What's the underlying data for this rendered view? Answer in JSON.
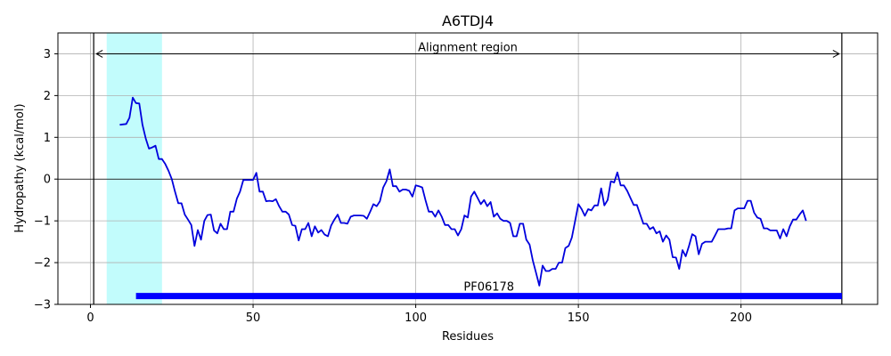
{
  "chart_data": {
    "type": "line",
    "title": "A6TDJ4",
    "xlabel": "Residues",
    "ylabel": "Hydropathy (kcal/mol)",
    "xlim": [
      -10,
      242
    ],
    "ylim": [
      -3,
      3.5
    ],
    "xticks": [
      0,
      50,
      100,
      150,
      200
    ],
    "yticks": [
      -3,
      -2,
      -1,
      0,
      1,
      2,
      3
    ],
    "grid": true,
    "colors": {
      "line": "#0000dd",
      "highlight": "#c2fcfc",
      "domain_bar": "#0000ff",
      "grid": "#b0b0b0"
    },
    "highlight_region": [
      5,
      22
    ],
    "alignment_region": {
      "label": "Alignment region",
      "start": 1,
      "end": 231,
      "y": 3
    },
    "domain": {
      "label": "PF06178",
      "start": 14,
      "end": 231,
      "y": -2.8
    },
    "series": [
      {
        "x": [
          9,
          11,
          12,
          13,
          14,
          15,
          16,
          17,
          18,
          19,
          20,
          21,
          22,
          23,
          24,
          25,
          26,
          27,
          28,
          29,
          30,
          31,
          32,
          33,
          34,
          35,
          36,
          37,
          38,
          39,
          40,
          41,
          42,
          43,
          44,
          45,
          46,
          47,
          48,
          49,
          50,
          51,
          52,
          53,
          54,
          55,
          56,
          57,
          58,
          59,
          60,
          61,
          62,
          63,
          64,
          65,
          66,
          67,
          68,
          69,
          70,
          71,
          72,
          73,
          74,
          75,
          76,
          77,
          78,
          79,
          80,
          81,
          82,
          83,
          84,
          85,
          86,
          87,
          88,
          89,
          90,
          91,
          92,
          93,
          94,
          95,
          96,
          97,
          98,
          99,
          100,
          101,
          102,
          103,
          104,
          105,
          106,
          107,
          108,
          109,
          110,
          111,
          112,
          113,
          114,
          115,
          116,
          117,
          118,
          119,
          120,
          121,
          122,
          123,
          124,
          125,
          126,
          127,
          128,
          129,
          130,
          131,
          132,
          133,
          134,
          135,
          136,
          137,
          138,
          139,
          140,
          141,
          142,
          143,
          144,
          145,
          146,
          147,
          148,
          149,
          150,
          151,
          152,
          153,
          154,
          155,
          156,
          157,
          158,
          159,
          160,
          161,
          162,
          163,
          164,
          165,
          166,
          167,
          168,
          169,
          170,
          171,
          172,
          173,
          174,
          175,
          176,
          177,
          178,
          179,
          180,
          181,
          182,
          183,
          184,
          185,
          186,
          187,
          188,
          189,
          190,
          191,
          192,
          193,
          194,
          195,
          196,
          197,
          198,
          199,
          200,
          201,
          202,
          203,
          204,
          205,
          206,
          207,
          208,
          209,
          210,
          211,
          212,
          213,
          214,
          215,
          216,
          217,
          218,
          219,
          220
        ],
        "values": [
          1.3,
          1.32,
          1.47,
          1.95,
          1.82,
          1.81,
          1.3,
          0.97,
          0.73,
          0.76,
          0.8,
          0.48,
          0.48,
          0.36,
          0.2,
          0.0,
          -0.3,
          -0.58,
          -0.58,
          -0.85,
          -0.97,
          -1.1,
          -1.6,
          -1.22,
          -1.45,
          -1.0,
          -0.86,
          -0.85,
          -1.23,
          -1.3,
          -1.07,
          -1.2,
          -1.2,
          -0.78,
          -0.78,
          -0.47,
          -0.3,
          -0.02,
          -0.02,
          -0.02,
          -0.02,
          0.15,
          -0.3,
          -0.3,
          -0.53,
          -0.52,
          -0.53,
          -0.48,
          -0.65,
          -0.78,
          -0.78,
          -0.85,
          -1.1,
          -1.12,
          -1.47,
          -1.2,
          -1.2,
          -1.05,
          -1.37,
          -1.13,
          -1.28,
          -1.22,
          -1.33,
          -1.37,
          -1.11,
          -0.97,
          -0.85,
          -1.05,
          -1.05,
          -1.07,
          -0.9,
          -0.87,
          -0.87,
          -0.87,
          -0.88,
          -0.95,
          -0.78,
          -0.6,
          -0.65,
          -0.53,
          -0.2,
          -0.05,
          0.23,
          -0.17,
          -0.17,
          -0.3,
          -0.25,
          -0.25,
          -0.28,
          -0.42,
          -0.15,
          -0.17,
          -0.2,
          -0.5,
          -0.78,
          -0.78,
          -0.9,
          -0.75,
          -0.9,
          -1.1,
          -1.1,
          -1.2,
          -1.2,
          -1.35,
          -1.2,
          -0.87,
          -0.92,
          -0.42,
          -0.3,
          -0.45,
          -0.6,
          -0.5,
          -0.65,
          -0.55,
          -0.9,
          -0.82,
          -0.95,
          -1.0,
          -1.0,
          -1.05,
          -1.37,
          -1.37,
          -1.07,
          -1.07,
          -1.45,
          -1.57,
          -1.95,
          -2.25,
          -2.55,
          -2.07,
          -2.2,
          -2.2,
          -2.15,
          -2.15,
          -2.0,
          -2.0,
          -1.65,
          -1.6,
          -1.4,
          -1.0,
          -0.6,
          -0.72,
          -0.88,
          -0.72,
          -0.75,
          -0.63,
          -0.63,
          -0.22,
          -0.63,
          -0.5,
          -0.05,
          -0.08,
          0.16,
          -0.15,
          -0.15,
          -0.28,
          -0.45,
          -0.62,
          -0.62,
          -0.85,
          -1.07,
          -1.07,
          -1.2,
          -1.15,
          -1.3,
          -1.25,
          -1.5,
          -1.35,
          -1.45,
          -1.87,
          -1.88,
          -2.15,
          -1.7,
          -1.85,
          -1.6,
          -1.32,
          -1.37,
          -1.8,
          -1.55,
          -1.5,
          -1.5,
          -1.5,
          -1.35,
          -1.2,
          -1.2,
          -1.2,
          -1.18,
          -1.18,
          -0.75,
          -0.7,
          -0.7,
          -0.7,
          -0.52,
          -0.52,
          -0.8,
          -0.92,
          -0.95,
          -1.18,
          -1.18,
          -1.23,
          -1.23,
          -1.23,
          -1.42,
          -1.2,
          -1.37,
          -1.13,
          -0.97,
          -0.97,
          -0.85,
          -0.75,
          -1.0
        ]
      }
    ]
  }
}
